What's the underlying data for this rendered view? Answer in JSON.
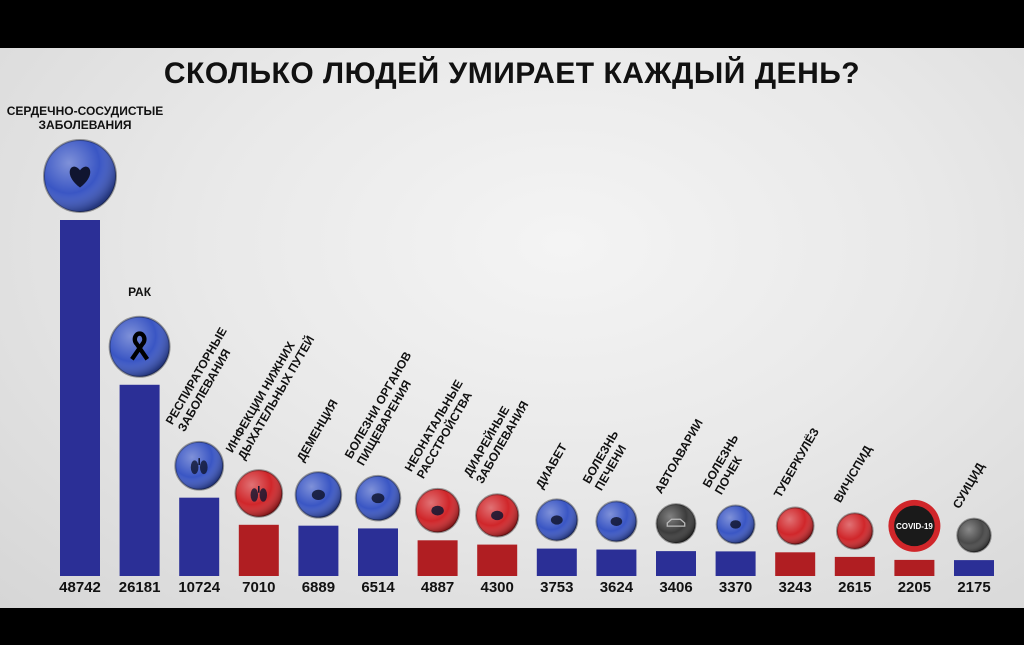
{
  "chart_data": {
    "type": "bar",
    "title": "СКОЛЬКО ЛЮДЕЙ УМИРАЕТ КАЖДЫЙ ДЕНЬ?",
    "xlabel": "",
    "ylabel": "",
    "grid": false,
    "legend": "none",
    "categories": [
      "СЕРДЕЧНО-СОСУДИСТЫЕ ЗАБОЛЕВАНИЯ",
      "РАК",
      "РЕСПИРАТОРНЫЕ ЗАБОЛЕВАНИЯ",
      "ИНФЕКЦИИ НИЖНИХ ДЫХАТЕЛЬНЫХ ПУТЕЙ",
      "ДЕМЕНЦИЯ",
      "БОЛЕЗНИ ОРГАНОВ ПИЩЕВАРЕНИЯ",
      "НЕОНАТАЛЬНЫЕ РАССТРОЙСТВА",
      "ДИАРЕЙНЫЕ ЗАБОЛЕВАНИЯ",
      "ДИАБЕТ",
      "БОЛЕЗНЬ ПЕЧЕНИ",
      "АВТОАВАРИИ",
      "БОЛЕЗНЬ ПОЧЕК",
      "ТУБЕРКУЛЁЗ",
      "ВИЧ/СПИД",
      "",
      "СУИЦИД"
    ],
    "label_lines": [
      [
        "СЕРДЕЧНО-СОСУДИСТЫЕ",
        "ЗАБОЛЕВАНИЯ"
      ],
      [
        "РАК"
      ],
      [
        "РЕСПИРАТОРНЫЕ",
        "ЗАБОЛЕВАНИЯ"
      ],
      [
        "ИНФЕКЦИИ НИЖНИХ",
        "ДЫХАТЕЛЬНЫХ ПУТЕЙ"
      ],
      [
        "ДЕМЕНЦИЯ"
      ],
      [
        "БОЛЕЗНИ ОРГАНОВ",
        "ПИЩЕВАРЕНИЯ"
      ],
      [
        "НЕОНАТАЛЬНЫЕ",
        "РАССТРОЙСТВА"
      ],
      [
        "ДИАРЕЙНЫЕ",
        "ЗАБОЛЕВАНИЯ"
      ],
      [
        "ДИАБЕТ"
      ],
      [
        "БОЛЕЗНЬ",
        "ПЕЧЕНИ"
      ],
      [
        "АВТОАВАРИИ"
      ],
      [
        "БОЛЕЗНЬ",
        "ПОЧЕК"
      ],
      [
        "ТУБЕРКУЛЁЗ"
      ],
      [
        "ВИЧ/СПИД"
      ],
      [],
      [
        "СУИЦИД"
      ]
    ],
    "values": [
      48742,
      26181,
      10724,
      7010,
      6889,
      6514,
      4887,
      4300,
      3753,
      3624,
      3406,
      3370,
      3243,
      2615,
      2205,
      2175
    ],
    "value_labels": [
      "48742",
      "26181",
      "10724",
      "7010",
      "6889",
      "6514",
      "4887",
      "4300",
      "3753",
      "3624",
      "3406",
      "3370",
      "3243",
      "2615",
      "2205",
      "2175"
    ],
    "bar_colors": [
      "#2b2f96",
      "#2b2f96",
      "#2b2f96",
      "#b01e22",
      "#2b2f96",
      "#2b2f96",
      "#b01e22",
      "#b01e22",
      "#2b2f96",
      "#2b2f96",
      "#2b2f96",
      "#2b2f96",
      "#b01e22",
      "#b01e22",
      "#b01e22",
      "#2b2f96"
    ],
    "ball_colors": [
      "#3a56c4",
      "#3a56c4",
      "#3a56c4",
      "#d0262a",
      "#3a56c4",
      "#3a56c4",
      "#d0262a",
      "#d0262a",
      "#3a56c4",
      "#3a56c4",
      "#3c3c3c",
      "#3a56c4",
      "#d0262a",
      "#d0262a",
      "#d0262a",
      "#4a4a4a"
    ],
    "ball_icons": [
      "heart-icon",
      "ribbon-icon",
      "lungs-icon",
      "lungs-icon",
      "brain-icon",
      "stomach-icon",
      "baby-icon",
      "intestine-icon",
      "pancreas-icon",
      "liver-icon",
      "car-icon",
      "kidney-icon",
      "",
      "",
      "virus-icon",
      ""
    ],
    "ball_texts": [
      "",
      "",
      "",
      "",
      "",
      "",
      "",
      "",
      "",
      "",
      "",
      "",
      "",
      "",
      "COVID-19",
      ""
    ]
  }
}
